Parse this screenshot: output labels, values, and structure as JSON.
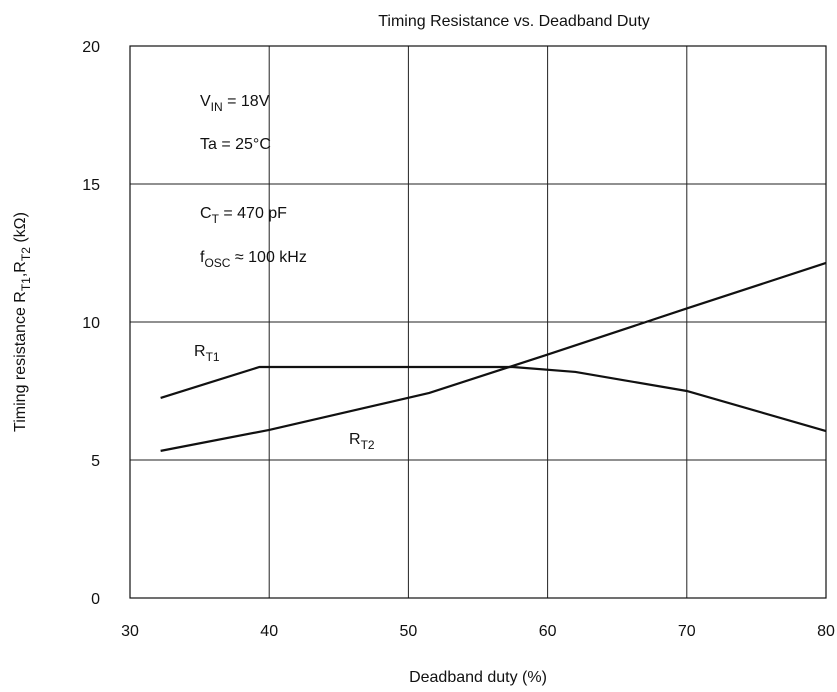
{
  "chart_data": {
    "type": "line",
    "title": "Timing Resistance vs. Deadband Duty",
    "xlabel": "Deadband duty (%)",
    "ylabel": [
      {
        "text": "Timing resistance R"
      },
      {
        "text": "T1",
        "sub": true
      },
      {
        "text": ",R"
      },
      {
        "text": "T2",
        "sub": true
      },
      {
        "text": " (kΩ)"
      }
    ],
    "xlim": [
      30,
      80
    ],
    "ylim": [
      0,
      20
    ],
    "xticks": [
      30,
      40,
      50,
      60,
      70,
      80
    ],
    "yticks": [
      0,
      5,
      10,
      15,
      20
    ],
    "grid": true,
    "series": [
      {
        "name": [
          {
            "text": "R"
          },
          {
            "text": "T1",
            "sub": true
          }
        ],
        "color": "#111111",
        "x": [
          32.2,
          39.3,
          57.5,
          62,
          70,
          80
        ],
        "values": [
          7.25,
          8.37,
          8.37,
          8.19,
          7.5,
          6.05
        ]
      },
      {
        "name": [
          {
            "text": "R"
          },
          {
            "text": "T2",
            "sub": true
          }
        ],
        "color": "#111111",
        "x": [
          32.2,
          40,
          51.5,
          60,
          70,
          80
        ],
        "values": [
          5.33,
          6.09,
          7.43,
          8.82,
          10.49,
          12.14
        ]
      }
    ],
    "annotations": [
      [
        {
          "text": "V"
        },
        {
          "text": "IN",
          "sub": true
        },
        {
          "text": " = 18V"
        }
      ],
      [
        {
          "text": "Ta = 25°C"
        }
      ],
      [
        {
          "text": "C"
        },
        {
          "text": "T",
          "sub": true
        },
        {
          "text": " = 470 pF"
        }
      ],
      [
        {
          "text": "f"
        },
        {
          "text": "OSC",
          "sub": true
        },
        {
          "text": " ≈ 100 kHz"
        }
      ]
    ]
  }
}
